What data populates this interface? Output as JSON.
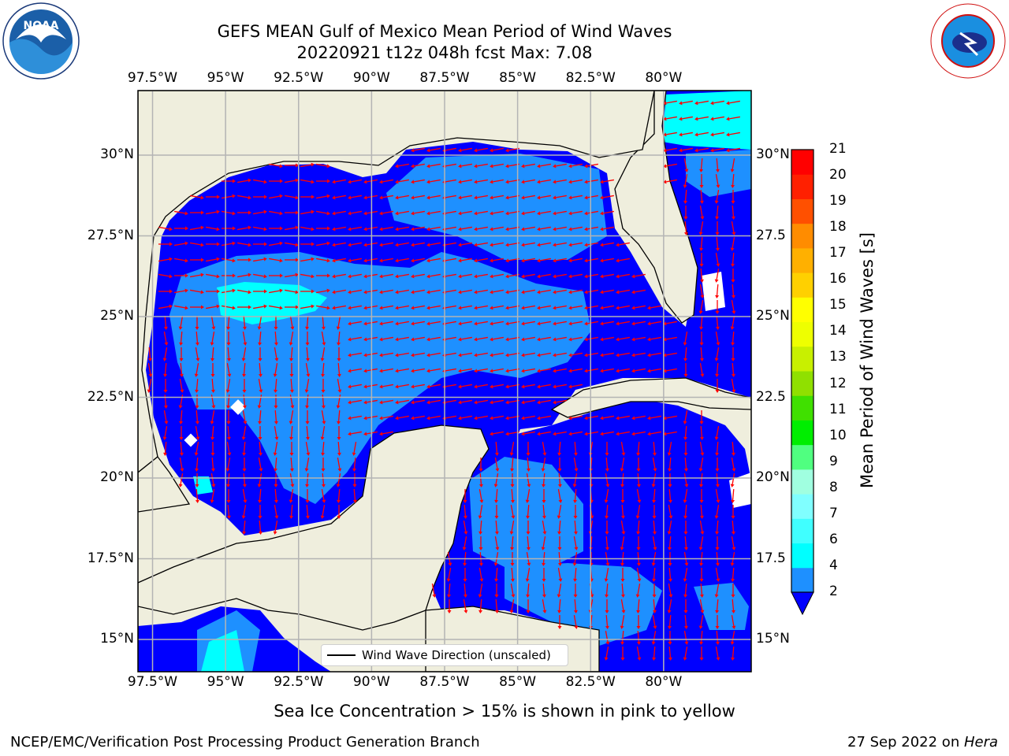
{
  "header": {
    "title": "GEFS MEAN Gulf of Mexico Mean Period of Wind Waves",
    "subtitle": "20220921 t12z 048h fcst   Max: 7.08"
  },
  "logos": {
    "noaa_text": "NOAA"
  },
  "map": {
    "lon_ticks": [
      "97.5°W",
      "95°W",
      "92.5°W",
      "90°W",
      "87.5°W",
      "85°W",
      "82.5°W",
      "80°W"
    ],
    "lat_ticks_left": [
      "30°N",
      "27.5°N",
      "25°N",
      "22.5°N",
      "20°N",
      "17.5°N",
      "15°N"
    ],
    "lat_ticks_right": [
      "30°N",
      "27.5",
      "25°N",
      "22.5",
      "20°N",
      "17.5",
      "15°N"
    ],
    "legend_label": "Wind Wave Direction (unscaled)",
    "colors": {
      "land": "#efeedd",
      "ocean_deep": "#0000ff",
      "ocean_mid": "#1e90ff",
      "ocean_light": "#00ffff",
      "arrow": "#ff0000",
      "grid": "#b4b4b4"
    }
  },
  "colorbar": {
    "label": "Mean Period of Wind Waves [s]",
    "ticks": [
      "2",
      "4",
      "6",
      "7",
      "8",
      "9",
      "10",
      "11",
      "12",
      "13",
      "14",
      "15",
      "16",
      "17",
      "18",
      "19",
      "20",
      "21"
    ],
    "colors": [
      "#1e90ff",
      "#00ffff",
      "#40ffff",
      "#80ffff",
      "#a0ffe0",
      "#50ff80",
      "#00ee00",
      "#40e000",
      "#90e000",
      "#c8f000",
      "#eeff00",
      "#ffff00",
      "#ffd000",
      "#ffb000",
      "#ff8c00",
      "#ff5000",
      "#ff2000",
      "#ff0000"
    ]
  },
  "footer": {
    "note": "Sea Ice Concentration > 15% is shown in pink to yellow",
    "branch": "NCEP/EMC/Verification Post Processing Product Generation Branch",
    "date": "27 Sep 2022 on ",
    "host": "Hera"
  }
}
